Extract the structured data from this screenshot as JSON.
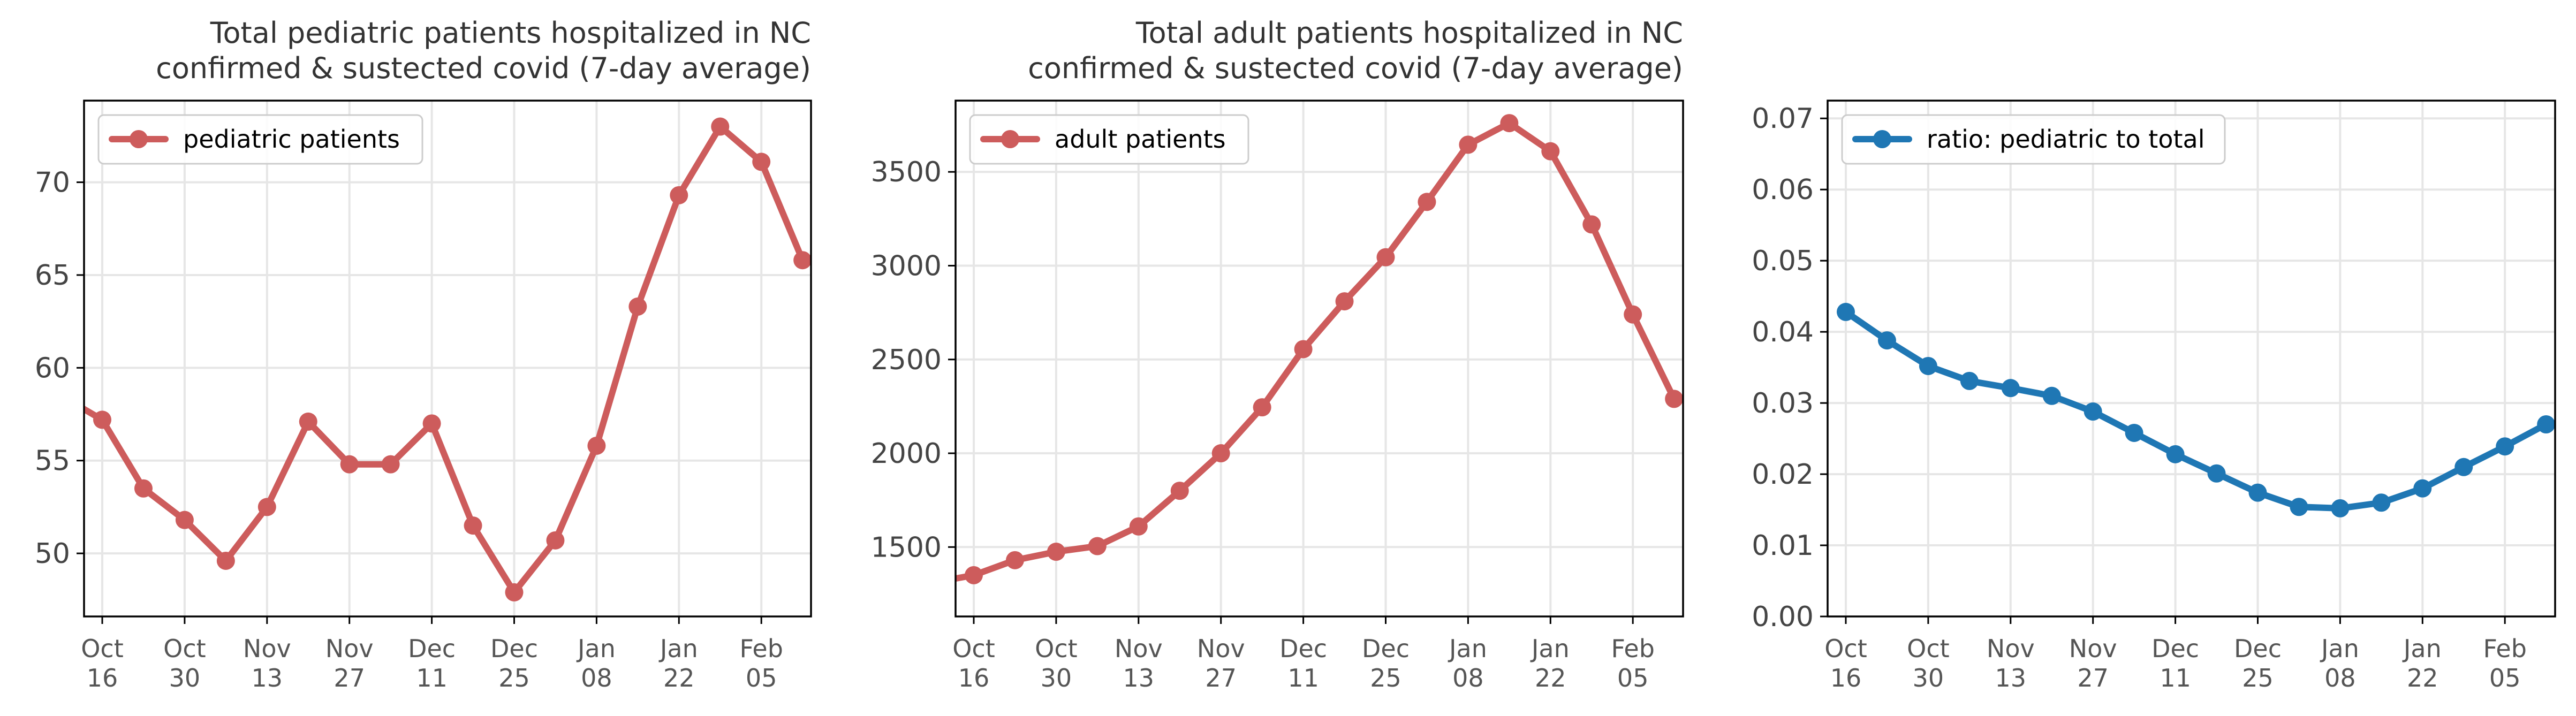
{
  "colors": {
    "pediatric_line": "#cd5c5c",
    "adult_line": "#cd5c5c",
    "ratio_line": "#1f77b4",
    "grid": "#e6e6e6",
    "axes": "#000000"
  },
  "chart_data": [
    {
      "type": "line",
      "title": "Total pediatric patients hospitalized in NC\nconfirmed & sustected covid (7-day average)",
      "title_lines": [
        "Total pediatric patients hospitalized in NC",
        "confirmed & sustected covid (7-day average)"
      ],
      "x_categories": [
        "Oct 16",
        "Oct 23",
        "Oct 30",
        "Nov 06",
        "Nov 13",
        "Nov 20",
        "Nov 27",
        "Dec 04",
        "Dec 11",
        "Dec 18",
        "Dec 25",
        "Jan 01",
        "Jan 08",
        "Jan 15",
        "Jan 22",
        "Jan 29",
        "Feb 05",
        "Feb 12"
      ],
      "x_ticks": [
        {
          "label": [
            "Oct",
            "16"
          ],
          "index": 0
        },
        {
          "label": [
            "Oct",
            "30"
          ],
          "index": 2
        },
        {
          "label": [
            "Nov",
            "13"
          ],
          "index": 4
        },
        {
          "label": [
            "Nov",
            "27"
          ],
          "index": 6
        },
        {
          "label": [
            "Dec",
            "11"
          ],
          "index": 8
        },
        {
          "label": [
            "Dec",
            "25"
          ],
          "index": 10
        },
        {
          "label": [
            "Jan",
            "08"
          ],
          "index": 12
        },
        {
          "label": [
            "Jan",
            "22"
          ],
          "index": 14
        },
        {
          "label": [
            "Feb",
            "05"
          ],
          "index": 16
        }
      ],
      "lead_in_value": 58.5,
      "series": [
        {
          "name": "pediatric patients",
          "color": "#cd5c5c",
          "values": [
            57.2,
            53.5,
            51.8,
            49.6,
            52.5,
            57.1,
            54.8,
            54.8,
            57.0,
            51.5,
            47.9,
            50.7,
            55.8,
            63.3,
            69.3,
            73.0,
            71.1,
            65.8
          ]
        }
      ],
      "ylim": [
        46.6,
        74.4
      ],
      "yticks": [
        50,
        55,
        60,
        65,
        70
      ],
      "ytick_labels": [
        "50",
        "55",
        "60",
        "65",
        "70"
      ],
      "grid": true,
      "legend": "top-left"
    },
    {
      "type": "line",
      "title": "Total adult patients hospitalized in NC\nconfirmed & sustected covid (7-day average)",
      "title_lines": [
        "Total adult patients hospitalized in NC",
        "confirmed & sustected covid (7-day average)"
      ],
      "x_categories": [
        "Oct 16",
        "Oct 23",
        "Oct 30",
        "Nov 06",
        "Nov 13",
        "Nov 20",
        "Nov 27",
        "Dec 04",
        "Dec 11",
        "Dec 18",
        "Dec 25",
        "Jan 01",
        "Jan 08",
        "Jan 15",
        "Jan 22",
        "Jan 29",
        "Feb 05",
        "Feb 12"
      ],
      "x_ticks": [
        {
          "label": [
            "Oct",
            "16"
          ],
          "index": 0
        },
        {
          "label": [
            "Oct",
            "30"
          ],
          "index": 2
        },
        {
          "label": [
            "Nov",
            "13"
          ],
          "index": 4
        },
        {
          "label": [
            "Nov",
            "27"
          ],
          "index": 6
        },
        {
          "label": [
            "Dec",
            "11"
          ],
          "index": 8
        },
        {
          "label": [
            "Dec",
            "25"
          ],
          "index": 10
        },
        {
          "label": [
            "Jan",
            "08"
          ],
          "index": 12
        },
        {
          "label": [
            "Jan",
            "22"
          ],
          "index": 14
        },
        {
          "label": [
            "Feb",
            "05"
          ],
          "index": 16
        }
      ],
      "lead_in_value": 1310,
      "series": [
        {
          "name": "adult patients",
          "color": "#cd5c5c",
          "values": [
            1350,
            1430,
            1475,
            1505,
            1610,
            1800,
            2000,
            2245,
            2555,
            2810,
            3045,
            3340,
            3645,
            3760,
            3610,
            3220,
            2740,
            2290
          ]
        }
      ],
      "ylim": [
        1130,
        3880
      ],
      "yticks": [
        1500,
        2000,
        2500,
        3000,
        3500
      ],
      "ytick_labels": [
        "1500",
        "2000",
        "2500",
        "3000",
        "3500"
      ],
      "grid": true,
      "legend": "top-left"
    },
    {
      "type": "line",
      "title": "",
      "title_lines": [],
      "x_categories": [
        "Oct 16",
        "Oct 23",
        "Oct 30",
        "Nov 06",
        "Nov 13",
        "Nov 20",
        "Nov 27",
        "Dec 04",
        "Dec 11",
        "Dec 18",
        "Dec 25",
        "Jan 01",
        "Jan 08",
        "Jan 15",
        "Jan 22",
        "Jan 29",
        "Feb 05",
        "Feb 12"
      ],
      "x_ticks": [
        {
          "label": [
            "Oct",
            "16"
          ],
          "index": 0
        },
        {
          "label": [
            "Oct",
            "30"
          ],
          "index": 2
        },
        {
          "label": [
            "Nov",
            "13"
          ],
          "index": 4
        },
        {
          "label": [
            "Nov",
            "27"
          ],
          "index": 6
        },
        {
          "label": [
            "Dec",
            "11"
          ],
          "index": 8
        },
        {
          "label": [
            "Dec",
            "25"
          ],
          "index": 10
        },
        {
          "label": [
            "Jan",
            "08"
          ],
          "index": 12
        },
        {
          "label": [
            "Jan",
            "22"
          ],
          "index": 14
        },
        {
          "label": [
            "Feb",
            "05"
          ],
          "index": 16
        }
      ],
      "lead_in_value": null,
      "series": [
        {
          "name": "ratio: pediatric to total",
          "color": "#1f77b4",
          "values": [
            0.0428,
            0.0388,
            0.0352,
            0.0331,
            0.0321,
            0.031,
            0.0288,
            0.0258,
            0.0228,
            0.0201,
            0.0174,
            0.0154,
            0.0152,
            0.016,
            0.018,
            0.021,
            0.0239,
            0.027
          ]
        }
      ],
      "ylim": [
        0.0,
        0.0725
      ],
      "yticks": [
        0.0,
        0.01,
        0.02,
        0.03,
        0.04,
        0.05,
        0.06,
        0.07
      ],
      "ytick_labels": [
        "0.00",
        "0.01",
        "0.02",
        "0.03",
        "0.04",
        "0.05",
        "0.06",
        "0.07"
      ],
      "grid": true,
      "legend": "top-left"
    }
  ]
}
